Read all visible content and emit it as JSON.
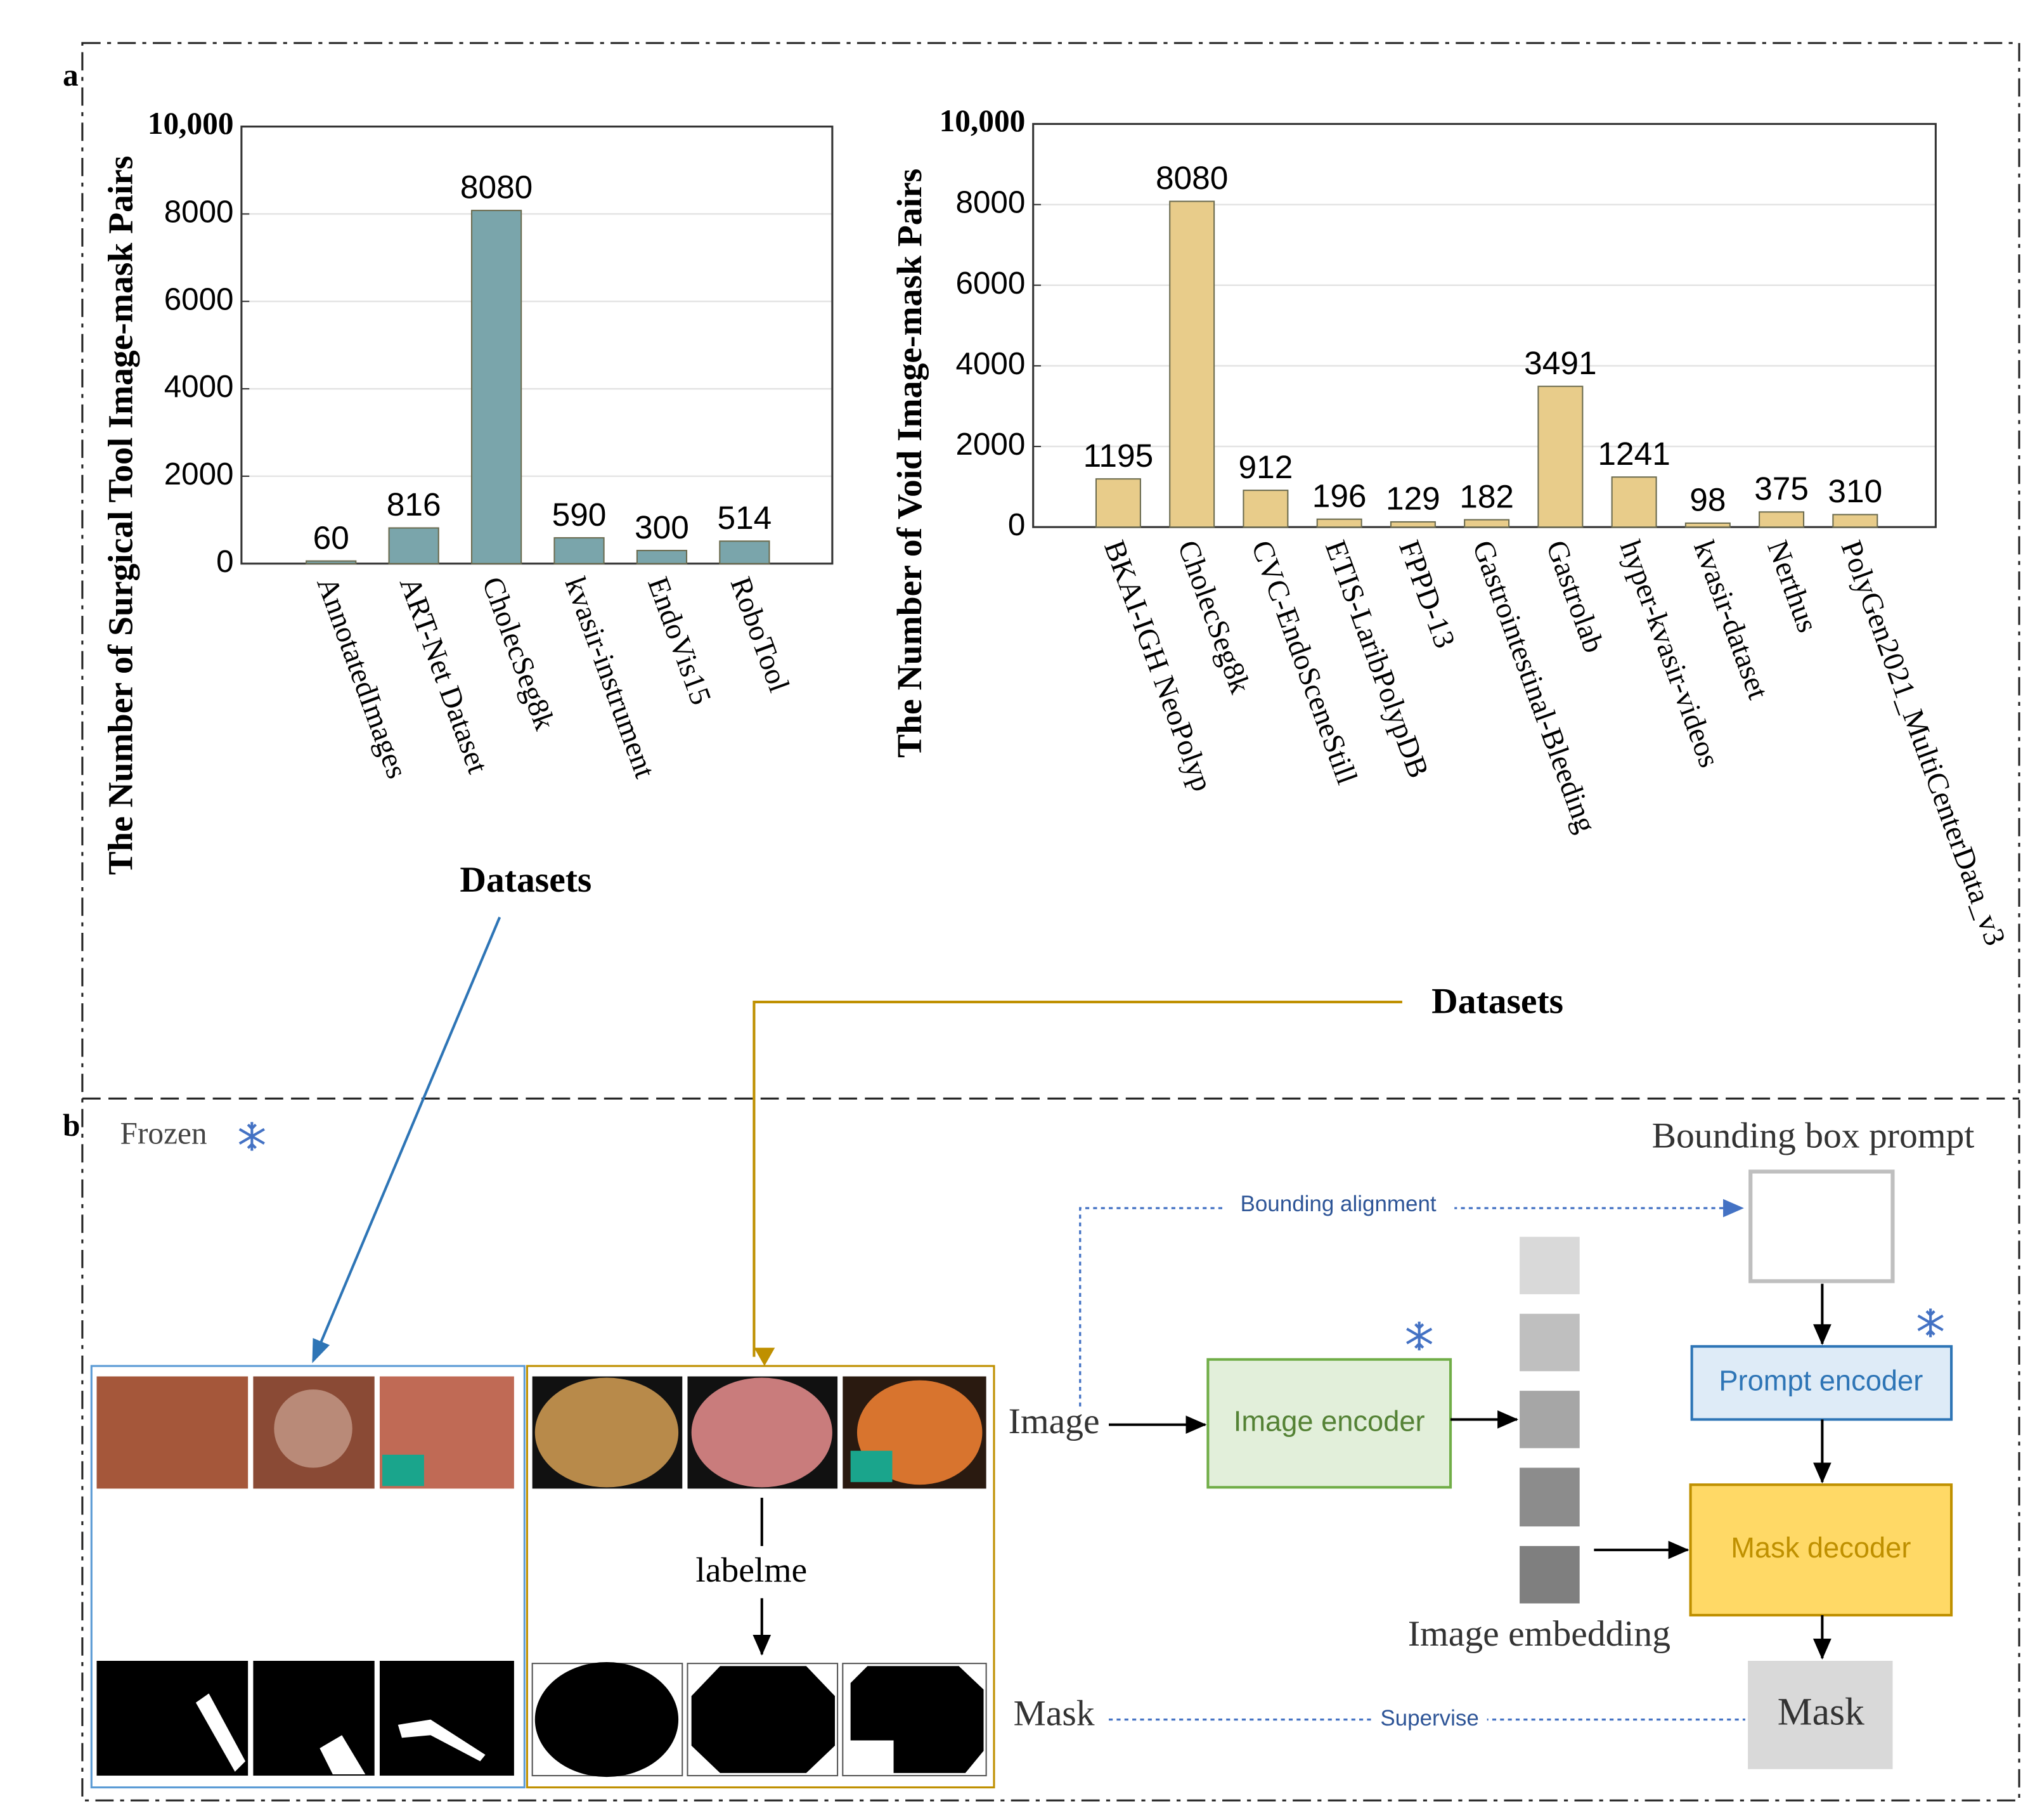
{
  "panel_labels": [
    "a",
    "b"
  ],
  "chart_data": [
    {
      "type": "bar",
      "ylabel": "The Number of Surgical Tool Image-mask Pairs",
      "xlabel": "Datasets",
      "categories": [
        "AnnotatedImages",
        "ART-Net Dataset",
        "CholecSeg8k",
        "kvasir-instrument",
        "EndoVis15",
        "RoboTool"
      ],
      "values": [
        60,
        816,
        8080,
        590,
        300,
        514
      ],
      "color": "#7aa5ab",
      "ylim": [
        0,
        10000
      ],
      "yticks": [
        0,
        2000,
        4000,
        6000,
        8000,
        {
          "value": 10000,
          "label": "10,000"
        }
      ],
      "grid": true
    },
    {
      "type": "bar",
      "ylabel": "The Number of Void Image-mask Pairs",
      "xlabel": "Datasets",
      "categories": [
        "BKAI-IGH NeoPolyp",
        "CholecSeg8k",
        "CVC-EndoSceneStill",
        "ETIS-LaribPolypDB",
        "FPPD-13",
        "Gastrointestinal-Bleeding",
        "Gastrolab",
        "hyper-kvasir-videos",
        "kvasir-dataset",
        "Nerthus",
        "PolyGen2021_MultiCenterData_v3"
      ],
      "values": [
        1195,
        8080,
        912,
        196,
        129,
        182,
        3491,
        1241,
        98,
        375,
        310
      ],
      "color": "#e8cc8a",
      "ylim": [
        0,
        10000
      ],
      "yticks": [
        0,
        2000,
        4000,
        6000,
        8000,
        {
          "value": 10000,
          "label": "10,000"
        }
      ],
      "grid": true
    }
  ],
  "diagram": {
    "frozen": "Frozen",
    "labelme": "labelme",
    "input_image": "Image",
    "image_encoder": "Image encoder",
    "image_embedding": "Image embedding",
    "bounding_box_prompt": "Bounding box prompt",
    "bounding_alignment": "Bounding alignment",
    "prompt_encoder": "Prompt encoder",
    "mask_decoder": "Mask decoder",
    "mask_output": "Mask",
    "mask_input": "Mask",
    "supervise": "Supervise"
  }
}
